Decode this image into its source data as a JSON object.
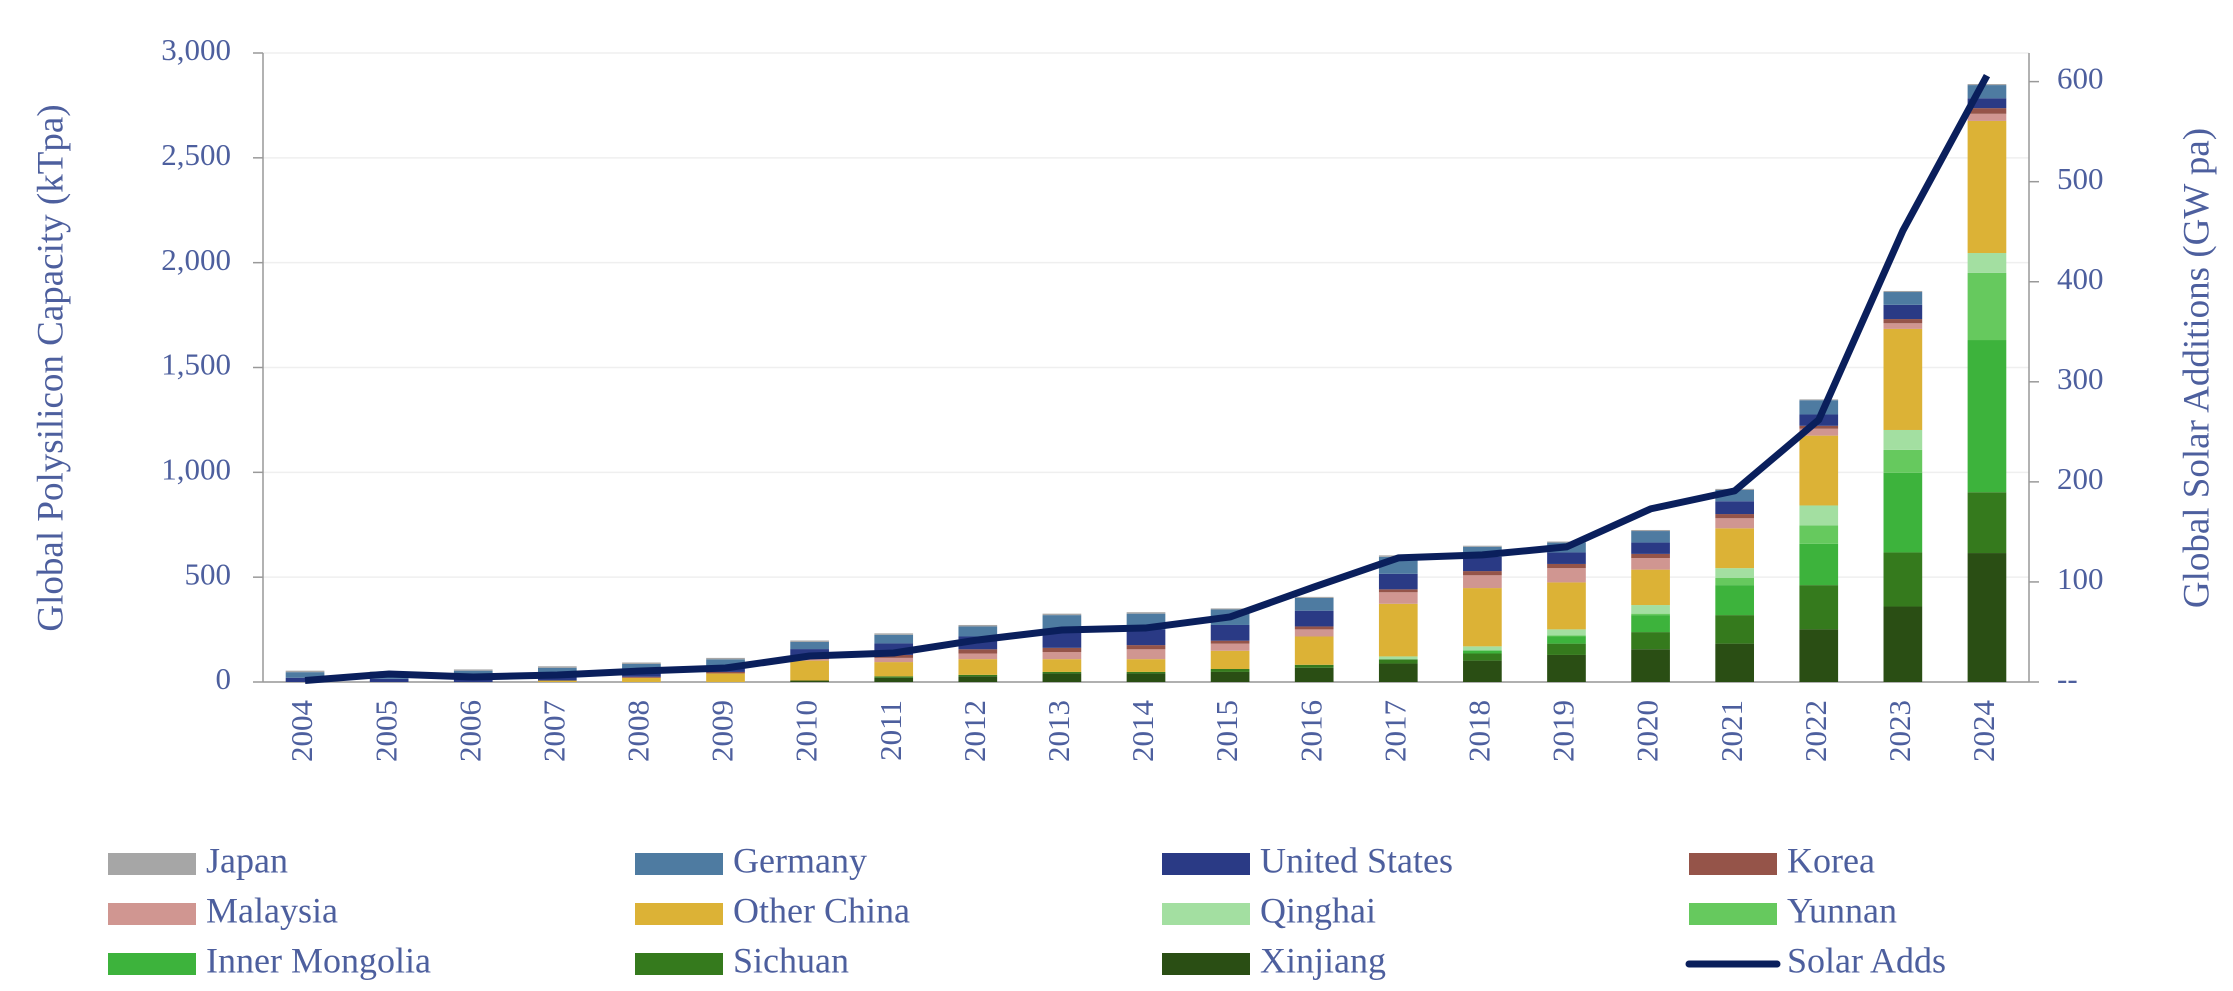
{
  "chart_data": {
    "type": "bar",
    "ylabel": "Global Polysilicon Capacity (kTpa)",
    "y2label": "Global Solar Additions (GW pa)",
    "categories": [
      "2004",
      "2005",
      "2006",
      "2007",
      "2008",
      "2009",
      "2010",
      "2011",
      "2012",
      "2013",
      "2014",
      "2015",
      "2016",
      "2017",
      "2018",
      "2019",
      "2020",
      "2021",
      "2022",
      "2023",
      "2024"
    ],
    "stacked": true,
    "grid": true,
    "ylim": [
      0,
      3000
    ],
    "yticks": [
      0,
      {
        "value": 500,
        "label": "500"
      },
      {
        "value": 1000,
        "label": "1,000"
      },
      {
        "value": 1500,
        "label": "1,500"
      },
      {
        "value": 2000,
        "label": "2,000"
      },
      {
        "value": 2500,
        "label": "2,500"
      },
      {
        "value": 3000,
        "label": "3,000"
      }
    ],
    "y2lim": [
      0,
      628.6
    ],
    "y2ticks": [
      {
        "value": 0,
        "label": "--"
      },
      100,
      200,
      300,
      400,
      500,
      600
    ],
    "legend": "bottom",
    "series": [
      {
        "name": "Japan",
        "color": "#a6a6a6",
        "values": [
          7,
          5,
          6,
          7,
          7,
          7,
          7,
          7,
          7,
          7,
          7,
          5,
          5,
          7,
          5,
          5,
          5,
          5,
          4,
          5,
          5
        ]
      },
      {
        "name": "Germany",
        "color": "#4e7ba1",
        "values": [
          27,
          30,
          34,
          34,
          34,
          30,
          34,
          41,
          48,
          81,
          75,
          74,
          61,
          81,
          48,
          47,
          55,
          54,
          68,
          61,
          63
        ]
      },
      {
        "name": "United States",
        "color": "#2a3a85",
        "values": [
          20,
          15,
          20,
          27,
          27,
          30,
          34,
          55,
          61,
          75,
          75,
          75,
          75,
          74,
          68,
          55,
          54,
          61,
          54,
          68,
          47
        ]
      },
      {
        "name": "Korea",
        "color": "#955449",
        "values": [
          0,
          0,
          0,
          0,
          5,
          7,
          14,
          14,
          20,
          20,
          20,
          14,
          14,
          14,
          20,
          20,
          20,
          20,
          14,
          20,
          27
        ]
      },
      {
        "name": "Malaysia",
        "color": "#d09691",
        "values": [
          0,
          0,
          0,
          0,
          0,
          0,
          7,
          20,
          27,
          34,
          47,
          34,
          34,
          55,
          61,
          68,
          55,
          48,
          33,
          27,
          34
        ]
      },
      {
        "name": "Other China",
        "color": "#dcb236",
        "values": [
          0,
          0,
          0,
          7,
          20,
          41,
          95,
          68,
          75,
          61,
          61,
          87,
          135,
          251,
          278,
          224,
          169,
          190,
          333,
          482,
          630
        ]
      },
      {
        "name": "Qinghai",
        "color": "#a3dfa1",
        "values": [
          0,
          0,
          0,
          0,
          0,
          0,
          0,
          0,
          0,
          0,
          0,
          0,
          0,
          14,
          20,
          29,
          41,
          47,
          95,
          95,
          95
        ]
      },
      {
        "name": "Yunnan",
        "color": "#66c95e",
        "values": [
          0,
          0,
          0,
          0,
          0,
          0,
          0,
          0,
          0,
          0,
          0,
          0,
          0,
          0,
          0,
          5,
          7,
          34,
          88,
          109,
          320
        ]
      },
      {
        "name": "Inner Mongolia",
        "color": "#3db33c",
        "values": [
          0,
          0,
          0,
          0,
          0,
          0,
          0,
          0,
          0,
          0,
          0,
          0,
          0,
          0,
          14,
          34,
          81,
          143,
          197,
          380,
          726
        ]
      },
      {
        "name": "Sichuan",
        "color": "#357a1d",
        "values": [
          0,
          0,
          0,
          0,
          0,
          0,
          0,
          7,
          7,
          7,
          7,
          14,
          14,
          20,
          34,
          54,
          82,
          136,
          211,
          258,
          290
        ]
      },
      {
        "name": "Xinjiang",
        "color": "#2a4e14",
        "values": [
          0,
          0,
          0,
          0,
          0,
          0,
          7,
          20,
          27,
          41,
          41,
          48,
          68,
          88,
          102,
          129,
          156,
          183,
          251,
          360,
          615
        ]
      },
      {
        "name": "Solar Adds",
        "color": "#0a1f5c",
        "type": "line",
        "axis": "y2",
        "values": [
          1.5,
          8,
          5,
          7,
          11,
          14,
          26,
          29,
          42,
          52,
          54,
          65,
          95,
          124,
          127,
          135,
          173,
          191,
          262,
          451,
          606
        ]
      }
    ]
  }
}
